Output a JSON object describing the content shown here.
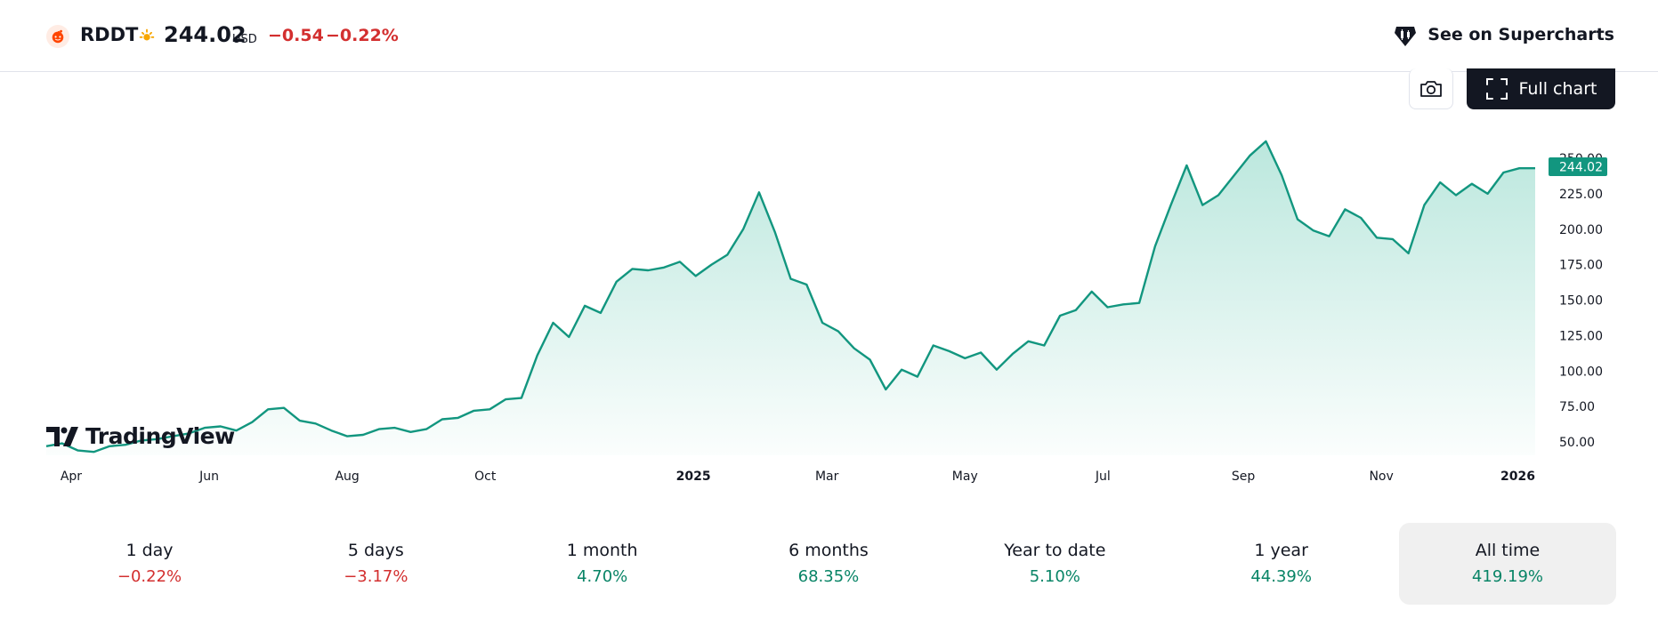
{
  "header": {
    "symbol": "RDDT",
    "price": "244.02",
    "currency": "USD",
    "change": "−0.54",
    "change_pct": "−0.22%",
    "supercharts_label": "See on Supercharts"
  },
  "toolbar": {
    "full_chart_label": "Full chart"
  },
  "brand": "TradingView",
  "colors": {
    "line": "#12967f",
    "negative": "#d32f2f",
    "positive": "#088466"
  },
  "chart_data": {
    "type": "area",
    "x": [
      "2024-03-21",
      "2024-03-28",
      "2024-04-04",
      "2024-04-11",
      "2024-04-18",
      "2024-04-25",
      "2024-05-02",
      "2024-05-09",
      "2024-05-16",
      "2024-05-23",
      "2024-05-30",
      "2024-06-06",
      "2024-06-13",
      "2024-06-20",
      "2024-06-27",
      "2024-07-04",
      "2024-07-11",
      "2024-07-18",
      "2024-07-25",
      "2024-08-01",
      "2024-08-08",
      "2024-08-15",
      "2024-08-22",
      "2024-08-29",
      "2024-09-05",
      "2024-09-12",
      "2024-09-19",
      "2024-09-26",
      "2024-10-03",
      "2024-10-10",
      "2024-10-17",
      "2024-10-24",
      "2024-10-31",
      "2024-11-07",
      "2024-11-14",
      "2024-11-21",
      "2024-11-28",
      "2024-12-05",
      "2024-12-12",
      "2024-12-19",
      "2024-12-26",
      "2025-01-02",
      "2025-01-09",
      "2025-01-16",
      "2025-01-23",
      "2025-01-30",
      "2025-02-06",
      "2025-02-13",
      "2025-02-20",
      "2025-02-27",
      "2025-03-06",
      "2025-03-13",
      "2025-03-20",
      "2025-03-27",
      "2025-04-03",
      "2025-04-10",
      "2025-04-17",
      "2025-04-24",
      "2025-05-01",
      "2025-05-08",
      "2025-05-15",
      "2025-05-22",
      "2025-05-29",
      "2025-06-05",
      "2025-06-12",
      "2025-06-19",
      "2025-06-26",
      "2025-07-03",
      "2025-07-10",
      "2025-07-17",
      "2025-07-24",
      "2025-07-31",
      "2025-08-07",
      "2025-08-14",
      "2025-08-21",
      "2025-08-28",
      "2025-09-04",
      "2025-09-11",
      "2025-09-18",
      "2025-09-25",
      "2025-10-02",
      "2025-10-09",
      "2025-10-16",
      "2025-10-23",
      "2025-10-30",
      "2025-11-06",
      "2025-11-13",
      "2025-11-20",
      "2025-11-27",
      "2025-12-04",
      "2025-12-11",
      "2025-12-18",
      "2025-12-25",
      "2026-01-01",
      "2026-01-08"
    ],
    "values": [
      47,
      49,
      44,
      43,
      47,
      48,
      51,
      52,
      54,
      56,
      60,
      61,
      58,
      64,
      73,
      74,
      65,
      63,
      58,
      54,
      55,
      59,
      60,
      57,
      59,
      66,
      67,
      72,
      73,
      80,
      81,
      111,
      134,
      124,
      146,
      141,
      163,
      172,
      171,
      173,
      177,
      167,
      175,
      182,
      200,
      226,
      198,
      165,
      161,
      134,
      128,
      116,
      108,
      87,
      101,
      96,
      118,
      114,
      109,
      113,
      101,
      112,
      121,
      118,
      139,
      143,
      156,
      145,
      147,
      148,
      188,
      217,
      245,
      217,
      224,
      238,
      252,
      262,
      238,
      207,
      199,
      195,
      214,
      208,
      194,
      193,
      183,
      217,
      233,
      224,
      232,
      225,
      240,
      243,
      243
    ],
    "price_label": "244.02",
    "y_ticks": [
      "250.00",
      "225.00",
      "200.00",
      "175.00",
      "150.00",
      "125.00",
      "100.00",
      "75.00",
      "50.00"
    ],
    "y_tick_values": [
      250,
      225,
      200,
      175,
      150,
      125,
      100,
      75,
      50
    ],
    "ylim": [
      37,
      283
    ],
    "x_ticks": [
      {
        "label": "Apr",
        "date": "2024-04-01",
        "bold": false
      },
      {
        "label": "Jun",
        "date": "2024-06-01",
        "bold": false
      },
      {
        "label": "Aug",
        "date": "2024-08-01",
        "bold": false
      },
      {
        "label": "Oct",
        "date": "2024-10-01",
        "bold": false
      },
      {
        "label": "2025",
        "date": "2025-01-01",
        "bold": true
      },
      {
        "label": "Mar",
        "date": "2025-03-01",
        "bold": false
      },
      {
        "label": "May",
        "date": "2025-05-01",
        "bold": false
      },
      {
        "label": "Jul",
        "date": "2025-07-01",
        "bold": false
      },
      {
        "label": "Sep",
        "date": "2025-09-01",
        "bold": false
      },
      {
        "label": "Nov",
        "date": "2025-11-01",
        "bold": false
      },
      {
        "label": "2026",
        "date": "2026-01-01",
        "bold": true
      }
    ],
    "grid": false
  },
  "periods": [
    {
      "label": "1 day",
      "value": "−0.22%",
      "sign": "neg",
      "active": false
    },
    {
      "label": "5 days",
      "value": "−3.17%",
      "sign": "neg",
      "active": false
    },
    {
      "label": "1 month",
      "value": "4.70%",
      "sign": "pos",
      "active": false
    },
    {
      "label": "6 months",
      "value": "68.35%",
      "sign": "pos",
      "active": false
    },
    {
      "label": "Year to date",
      "value": "5.10%",
      "sign": "pos",
      "active": false
    },
    {
      "label": "1 year",
      "value": "44.39%",
      "sign": "pos",
      "active": false
    },
    {
      "label": "All time",
      "value": "419.19%",
      "sign": "pos",
      "active": true
    }
  ]
}
